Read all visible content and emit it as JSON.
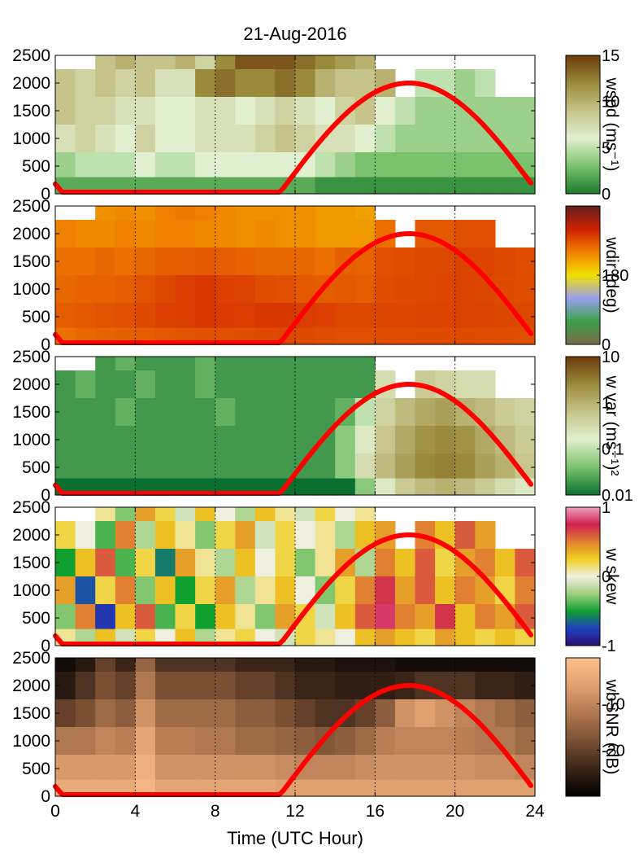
{
  "title": "21-Aug-2016",
  "xlabel": "Time (UTC Hour)",
  "overlay_color": "#ff0000",
  "chart_data": [
    {
      "type": "heatmap",
      "variable": "wspd",
      "colorbar_label": "wspd (ms⁻¹)",
      "colorbar_ticks": [
        "15",
        "10",
        "5",
        "0"
      ],
      "colorbar_range": [
        0,
        15
      ],
      "colormap": [
        "#1a7a2e",
        "#7ac26c",
        "#e0f0d0",
        "#c7c48a",
        "#9a8a3c",
        "#6b3a0c"
      ],
      "x": {
        "range": [
          0,
          24
        ],
        "ticks": [
          "0",
          "4",
          "8",
          "12",
          "16",
          "20",
          "24"
        ]
      },
      "y": {
        "range": [
          0,
          2500
        ],
        "ticks": [
          "0",
          "500",
          "1000",
          "1500",
          "2000",
          "2500"
        ]
      },
      "grid": "dotted-vertical",
      "rows": [
        {
          "h": 2500,
          "v": [
            null,
            null,
            9,
            10,
            9,
            9,
            10,
            8,
            12,
            14,
            14,
            14,
            13,
            12,
            11,
            10,
            null,
            null,
            null,
            null,
            null,
            null,
            null,
            null
          ]
        },
        {
          "h": 2000,
          "v": [
            9,
            8,
            9,
            8,
            9,
            7,
            7,
            12,
            13,
            12,
            12,
            13,
            12,
            10,
            9,
            9,
            10,
            null,
            5,
            5,
            4,
            5,
            null,
            null
          ]
        },
        {
          "h": 1500,
          "v": [
            9,
            8,
            8,
            7,
            7,
            6,
            6,
            7,
            7,
            6,
            7,
            8,
            7,
            6,
            8,
            9,
            6,
            5,
            4,
            4,
            4,
            4,
            4,
            4
          ]
        },
        {
          "h": 1000,
          "v": [
            7,
            8,
            7,
            6,
            8,
            6,
            6,
            7,
            7,
            7,
            8,
            9,
            8,
            7,
            7,
            6,
            5,
            4,
            4,
            4,
            4,
            4,
            4,
            4
          ]
        },
        {
          "h": 500,
          "v": [
            4,
            5,
            5,
            5,
            6,
            5,
            5,
            6,
            6,
            6,
            6,
            6,
            6,
            5,
            4,
            3,
            3,
            3,
            3,
            3,
            3,
            3,
            3,
            3
          ]
        },
        {
          "h": 100,
          "v": [
            2,
            2,
            2,
            2,
            2,
            2,
            2,
            2,
            2,
            2,
            2,
            2,
            2,
            1,
            1,
            1,
            1,
            1,
            1,
            1,
            1,
            1,
            1,
            1
          ]
        }
      ]
    },
    {
      "type": "heatmap",
      "variable": "wdir",
      "colorbar_label": "wdir (deg)",
      "colorbar_ticks": [
        "180",
        "0"
      ],
      "colorbar_range": [
        0,
        360
      ],
      "colormap": [
        "#7a6a4a",
        "#3aa04a",
        "#9aa0f0",
        "#f0e000",
        "#f08000",
        "#d02000",
        "#602020"
      ],
      "x": {
        "range": [
          0,
          24
        ],
        "ticks": [
          "0",
          "4",
          "8",
          "12",
          "16",
          "20",
          "24"
        ]
      },
      "y": {
        "range": [
          0,
          2500
        ],
        "ticks": [
          "0",
          "500",
          "1000",
          "1500",
          "2000",
          "2500"
        ]
      },
      "grid": "dotted-vertical",
      "rows": [
        {
          "h": 2500,
          "v": [
            null,
            null,
            230,
            235,
            230,
            240,
            245,
            240,
            235,
            230,
            230,
            230,
            230,
            225,
            225,
            220,
            null,
            null,
            null,
            null,
            null,
            null,
            null,
            null
          ]
        },
        {
          "h": 2000,
          "v": [
            240,
            235,
            235,
            240,
            235,
            240,
            240,
            235,
            235,
            230,
            235,
            230,
            230,
            225,
            225,
            225,
            250,
            null,
            265,
            265,
            270,
            270,
            null,
            null
          ]
        },
        {
          "h": 1500,
          "v": [
            250,
            250,
            255,
            250,
            255,
            260,
            262,
            265,
            262,
            258,
            255,
            255,
            255,
            250,
            260,
            258,
            270,
            272,
            275,
            275,
            278,
            278,
            275,
            272
          ]
        },
        {
          "h": 1000,
          "v": [
            255,
            258,
            258,
            262,
            268,
            275,
            282,
            285,
            280,
            278,
            272,
            270,
            265,
            262,
            265,
            262,
            272,
            274,
            275,
            276,
            278,
            276,
            274,
            272
          ]
        },
        {
          "h": 500,
          "v": [
            262,
            265,
            268,
            270,
            274,
            280,
            282,
            285,
            284,
            282,
            285,
            285,
            282,
            280,
            275,
            275,
            276,
            276,
            278,
            278,
            278,
            278,
            276,
            275
          ]
        },
        {
          "h": 100,
          "v": [
            250,
            255,
            258,
            260,
            262,
            265,
            268,
            270,
            270,
            272,
            274,
            275,
            274,
            272,
            270,
            270,
            272,
            272,
            274,
            274,
            274,
            272,
            272,
            270
          ]
        }
      ]
    },
    {
      "type": "heatmap",
      "variable": "w var",
      "colorbar_label": "w var (ms⁻¹)²",
      "colorbar_ticks": [
        "10",
        "1",
        "0.1",
        "0.01"
      ],
      "colorbar_scale": "log",
      "colorbar_range": [
        0.01,
        10
      ],
      "colormap": [
        "#0a7030",
        "#7ac26c",
        "#e0f0d0",
        "#c7c48a",
        "#9a8a3c",
        "#6b3a0c"
      ],
      "x": {
        "range": [
          0,
          24
        ],
        "ticks": [
          "0",
          "4",
          "8",
          "12",
          "16",
          "20",
          "24"
        ]
      },
      "y": {
        "range": [
          0,
          2500
        ],
        "ticks": [
          "0",
          "500",
          "1000",
          "1500",
          "2000",
          "2500"
        ]
      },
      "grid": "dotted-vertical",
      "rows": [
        {
          "h": 2500,
          "v": [
            null,
            null,
            0.02,
            0.03,
            0.02,
            0.02,
            0.02,
            0.03,
            0.02,
            0.02,
            0.02,
            0.02,
            0.02,
            0.02,
            0.02,
            0.02,
            null,
            null,
            null,
            null,
            null,
            null,
            null,
            null
          ]
        },
        {
          "h": 2000,
          "v": [
            0.02,
            0.03,
            0.02,
            0.02,
            0.03,
            0.02,
            0.02,
            0.03,
            0.02,
            0.02,
            0.02,
            0.02,
            0.02,
            0.02,
            0.02,
            0.02,
            0.3,
            null,
            0.5,
            0.4,
            0.3,
            0.3,
            null,
            null
          ]
        },
        {
          "h": 1500,
          "v": [
            0.02,
            0.02,
            0.02,
            0.03,
            0.02,
            0.02,
            0.02,
            0.02,
            0.03,
            0.02,
            0.02,
            0.02,
            0.02,
            0.02,
            0.03,
            0.1,
            0.4,
            0.8,
            1.2,
            1.5,
            1.0,
            0.8,
            0.5,
            0.4
          ]
        },
        {
          "h": 1000,
          "v": [
            0.02,
            0.02,
            0.02,
            0.02,
            0.02,
            0.02,
            0.02,
            0.02,
            0.02,
            0.02,
            0.02,
            0.02,
            0.02,
            0.02,
            0.05,
            0.2,
            0.6,
            1.2,
            2.0,
            2.5,
            2.0,
            1.2,
            0.8,
            0.5
          ]
        },
        {
          "h": 500,
          "v": [
            0.02,
            0.02,
            0.02,
            0.02,
            0.02,
            0.02,
            0.02,
            0.02,
            0.02,
            0.02,
            0.02,
            0.02,
            0.02,
            0.02,
            0.05,
            0.3,
            0.8,
            1.5,
            2.5,
            3.0,
            2.5,
            1.5,
            1.0,
            0.6
          ]
        },
        {
          "h": 100,
          "v": [
            0.01,
            0.01,
            0.01,
            0.01,
            0.01,
            0.01,
            0.01,
            0.01,
            0.01,
            0.01,
            0.01,
            0.01,
            0.01,
            0.01,
            0.01,
            0.05,
            0.2,
            0.5,
            0.8,
            1.0,
            0.8,
            0.5,
            0.3,
            0.2
          ]
        }
      ]
    },
    {
      "type": "heatmap",
      "variable": "w skew",
      "colorbar_label": "w skew",
      "colorbar_ticks": [
        "1",
        "0",
        "-1"
      ],
      "colorbar_range": [
        -1,
        1
      ],
      "colormap": [
        "#2a1070",
        "#2040c0",
        "#10a030",
        "#a0d080",
        "#f0f0e0",
        "#f0d020",
        "#e08030",
        "#d02050",
        "#f0a0c0"
      ],
      "x": {
        "range": [
          0,
          24
        ],
        "ticks": [
          "0",
          "4",
          "8",
          "12",
          "16",
          "20",
          "24"
        ]
      },
      "y": {
        "range": [
          0,
          2500
        ],
        "ticks": [
          "0",
          "500",
          "1000",
          "1500",
          "2000",
          "2500"
        ]
      },
      "grid": "dotted-vertical",
      "rows": [
        {
          "h": 2500,
          "v": [
            null,
            null,
            0.1,
            -0.3,
            0.4,
            0.2,
            -0.1,
            0.3,
            0.0,
            -0.2,
            0.3,
            0.1,
            -0.1,
            0.2,
            0.0,
            0.1,
            null,
            null,
            null,
            null,
            null,
            null,
            null,
            null
          ]
        },
        {
          "h": 2000,
          "v": [
            0.2,
            0.0,
            -0.4,
            0.5,
            -0.2,
            0.3,
            0.1,
            -0.3,
            0.2,
            0.4,
            -0.1,
            0.2,
            0.0,
            0.1,
            -0.2,
            0.3,
            0.4,
            null,
            0.5,
            0.3,
            0.6,
            0.4,
            null,
            null
          ]
        },
        {
          "h": 1500,
          "v": [
            -0.5,
            0.3,
            0.6,
            -0.4,
            0.2,
            -0.6,
            0.4,
            0.1,
            -0.2,
            0.3,
            0.0,
            0.2,
            -0.3,
            0.1,
            0.4,
            -0.2,
            0.5,
            0.3,
            0.6,
            0.2,
            0.4,
            0.5,
            0.3,
            0.6
          ]
        },
        {
          "h": 1000,
          "v": [
            0.4,
            -0.7,
            0.2,
            0.5,
            -0.3,
            0.3,
            -0.5,
            0.2,
            0.4,
            -0.2,
            0.1,
            0.3,
            0.0,
            -0.3,
            0.2,
            0.5,
            0.7,
            0.4,
            0.6,
            0.3,
            0.5,
            0.4,
            0.2,
            0.5
          ]
        },
        {
          "h": 500,
          "v": [
            -0.3,
            0.5,
            -0.8,
            0.3,
            0.6,
            -0.4,
            0.2,
            -0.5,
            0.3,
            0.1,
            -0.3,
            0.4,
            0.2,
            -0.1,
            0.3,
            0.6,
            0.8,
            0.5,
            0.4,
            0.7,
            0.3,
            0.5,
            0.4,
            0.6
          ]
        },
        {
          "h": 100,
          "v": [
            0.1,
            -0.2,
            0.3,
            -0.1,
            0.2,
            0.0,
            0.3,
            -0.2,
            0.1,
            0.2,
            0.0,
            -0.1,
            0.2,
            0.1,
            0.0,
            0.3,
            0.4,
            0.3,
            0.2,
            0.4,
            0.3,
            0.2,
            0.3,
            0.2
          ]
        }
      ]
    },
    {
      "type": "heatmap",
      "variable": "wbSNR",
      "colorbar_label": "wbSNR (dB)",
      "colorbar_ticks": [
        "-10",
        "-20"
      ],
      "colorbar_range": [
        -30,
        0
      ],
      "colormap": [
        "#000000",
        "#3a2418",
        "#7a5035",
        "#b07850",
        "#e0a070",
        "#ffc090"
      ],
      "x": {
        "range": [
          0,
          24
        ],
        "ticks": [
          "0",
          "4",
          "8",
          "12",
          "16",
          "20",
          "24"
        ]
      },
      "y": {
        "range": [
          0,
          2500
        ],
        "ticks": [
          "0",
          "500",
          "1000",
          "1500",
          "2000",
          "2500"
        ]
      },
      "grid": "dotted-vertical",
      "rows": [
        {
          "h": 2500,
          "v": [
            -28,
            -26,
            -20,
            -24,
            -15,
            -22,
            -22,
            -22,
            -22,
            -24,
            -24,
            -24,
            -26,
            -26,
            -27,
            -27,
            -27,
            -28,
            -28,
            -28,
            -28,
            -28,
            -28,
            -28
          ]
        },
        {
          "h": 2000,
          "v": [
            -26,
            -22,
            -18,
            -20,
            -12,
            -18,
            -18,
            -18,
            -18,
            -20,
            -20,
            -22,
            -24,
            -24,
            -25,
            -25,
            -25,
            -24,
            -22,
            -22,
            -22,
            -24,
            -24,
            -25
          ]
        },
        {
          "h": 1500,
          "v": [
            -20,
            -18,
            -14,
            -16,
            -8,
            -14,
            -14,
            -14,
            -14,
            -16,
            -16,
            -18,
            -20,
            -22,
            -22,
            -20,
            -16,
            -8,
            -6,
            -8,
            -10,
            -12,
            -14,
            -16
          ]
        },
        {
          "h": 1000,
          "v": [
            -12,
            -12,
            -10,
            -11,
            -5,
            -11,
            -11,
            -12,
            -12,
            -14,
            -14,
            -15,
            -16,
            -17,
            -16,
            -14,
            -11,
            -10,
            -10,
            -10,
            -11,
            -12,
            -12,
            -14
          ]
        },
        {
          "h": 500,
          "v": [
            -7,
            -7,
            -7,
            -7,
            -3,
            -8,
            -8,
            -8,
            -8,
            -8,
            -8,
            -9,
            -10,
            -10,
            -10,
            -9,
            -8,
            -8,
            -8,
            -8,
            -8,
            -9,
            -9,
            -10
          ]
        },
        {
          "h": 100,
          "v": [
            -4,
            -4,
            -4,
            -4,
            -2,
            -5,
            -5,
            -5,
            -5,
            -5,
            -5,
            -6,
            -6,
            -6,
            -6,
            -6,
            -6,
            -6,
            -6,
            -6,
            -6,
            -6,
            -6,
            -6
          ]
        }
      ]
    }
  ]
}
